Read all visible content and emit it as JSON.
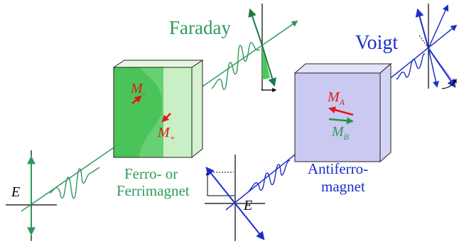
{
  "colors": {
    "green": "#2e9a5c",
    "green_dark": "#1f7a44",
    "green_fill": "#4cc85a",
    "green_light": "#c9efc4",
    "blue": "#1a2fc8",
    "blue_fill": "#c9c9f2",
    "red": "#e01818",
    "black": "#000000"
  },
  "faraday": {
    "title": "Faraday",
    "field_label": "E",
    "sample_line1": "Ferro- or",
    "sample_line2": "Ferrimagnet",
    "domain_minus": "M",
    "domain_minus_sub": "-",
    "domain_plus": "M",
    "domain_plus_sub": "+"
  },
  "voigt": {
    "title": "Voigt",
    "field_label": "E",
    "sample_line1": "Antiferro-",
    "sample_line2": "magnet",
    "sublattice_a": "M",
    "sublattice_a_sub": "A",
    "sublattice_b": "M",
    "sublattice_b_sub": "B"
  }
}
